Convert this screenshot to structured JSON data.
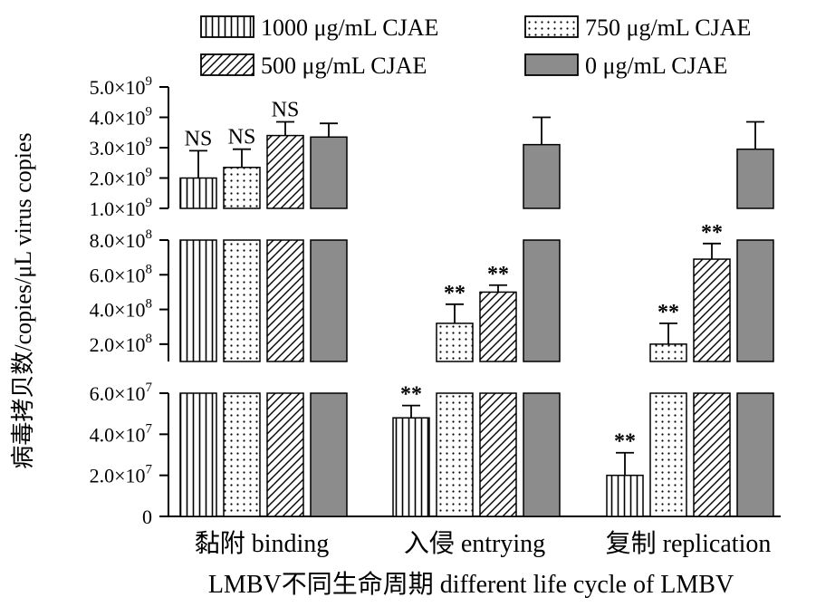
{
  "chart_data": {
    "type": "bar",
    "ylabel": "病毒拷贝数/copies/μL virus copies",
    "xlabel": "LMBV不同生命周期 different life cycle of LMBV",
    "categories": [
      "黏附 binding",
      "入侵 entrying",
      "复制 replication"
    ],
    "series": [
      {
        "name": "1000 μg/mL CJAE",
        "pattern": "vertical-lines",
        "values": [
          2000000000,
          48000000,
          20000000
        ],
        "errors": [
          900000000,
          6000000,
          11000000
        ]
      },
      {
        "name": "750 μg/mL CJAE",
        "pattern": "dots",
        "values": [
          2350000000,
          320000000,
          200000000
        ],
        "errors": [
          600000000,
          110000000,
          120000000
        ]
      },
      {
        "name": "500 μg/mL CJAE",
        "pattern": "diagonal-lines",
        "values": [
          3400000000,
          500000000,
          690000000
        ],
        "errors": [
          450000000,
          40000000,
          90000000
        ]
      },
      {
        "name": "0 μg/mL CJAE",
        "pattern": "solid-gray",
        "values": [
          3350000000,
          3100000000,
          2950000000
        ],
        "errors": [
          450000000,
          900000000,
          900000000
        ]
      }
    ],
    "annotations": [
      [
        "NS",
        "NS",
        "NS",
        ""
      ],
      [
        "**",
        "**",
        "**",
        ""
      ],
      [
        "**",
        "**",
        "**",
        ""
      ]
    ],
    "axis_segments": [
      {
        "range": [
          0,
          60000000
        ],
        "ticks": [
          {
            "m": "0",
            "e": ""
          },
          {
            "m": "2.0×10",
            "e": "7"
          },
          {
            "m": "4.0×10",
            "e": "7"
          },
          {
            "m": "6.0×10",
            "e": "7"
          }
        ]
      },
      {
        "range": [
          100000000,
          800000000
        ],
        "ticks": [
          {
            "m": "2.0×10",
            "e": "8"
          },
          {
            "m": "4.0×10",
            "e": "8"
          },
          {
            "m": "6.0×10",
            "e": "8"
          },
          {
            "m": "8.0×10",
            "e": "8"
          }
        ]
      },
      {
        "range": [
          1000000000,
          5000000000
        ],
        "ticks": [
          {
            "m": "1.0×10",
            "e": "9"
          },
          {
            "m": "2.0×10",
            "e": "9"
          },
          {
            "m": "3.0×10",
            "e": "9"
          },
          {
            "m": "4.0×10",
            "e": "9"
          },
          {
            "m": "5.0×10",
            "e": "9"
          }
        ]
      }
    ],
    "tick_values": [
      [
        0,
        20000000,
        40000000,
        60000000
      ],
      [
        200000000,
        400000000,
        600000000,
        800000000
      ],
      [
        1000000000,
        2000000000,
        3000000000,
        4000000000,
        5000000000
      ]
    ],
    "legend": {
      "placement": "top",
      "columns": 2
    },
    "grid": false
  }
}
